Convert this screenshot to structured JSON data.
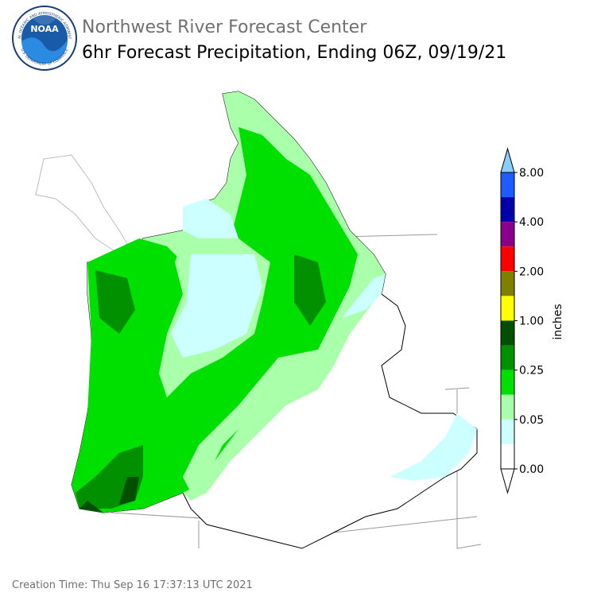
{
  "header": {
    "logo_text": "NOAA",
    "logo_ring": "NATIONAL OCEANIC AND ATMOSPHERIC ADMINISTRATION",
    "logo_ring_bottom": "U.S. DEPARTMENT OF COMMERCE",
    "title": "Northwest River Forecast Center",
    "subtitle": "6hr Forecast Precipitation, Ending 06Z, 09/19/21"
  },
  "legend": {
    "unit": "inches",
    "ticks": [
      "8.00",
      "4.00",
      "2.00",
      "1.00",
      "0.25",
      "0.05",
      "0.00"
    ],
    "top_color": "#87cefa",
    "colors": [
      "#1e5cff",
      "#0000a8",
      "#8a008a",
      "#ff0000",
      "#808000",
      "#ffff00",
      "#005000",
      "#009000",
      "#00e000",
      "#aaffaa",
      "#ccffff",
      "#ffffff"
    ],
    "bottom_color": "#ffffff"
  },
  "footer": {
    "creation_time": "Creation Time: Thu Sep 16 17:37:13 UTC 2021"
  }
}
